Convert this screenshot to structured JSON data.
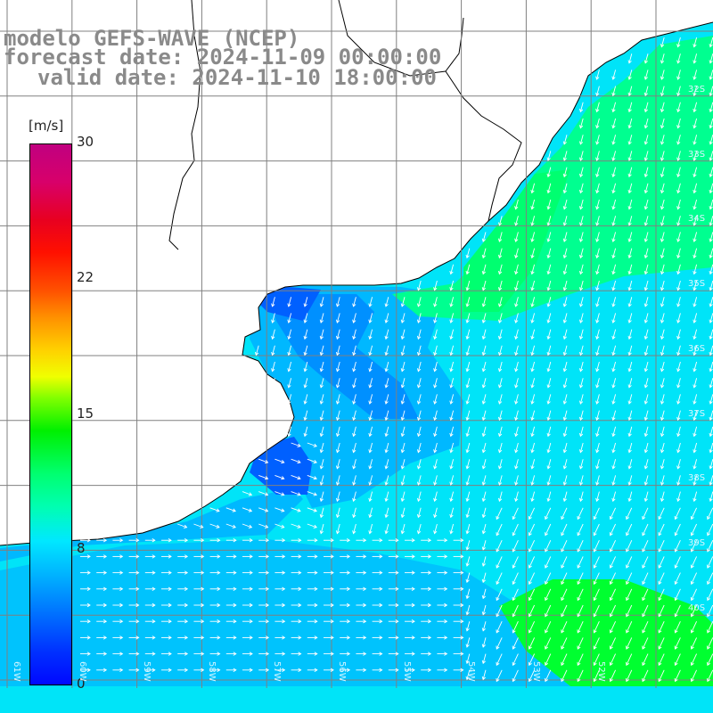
{
  "header": {
    "title": "modelo GEFS-WAVE (NCEP)",
    "forecast": "forecast date: 2024-11-09 00:00:00",
    "valid": "valid date: 2024-11-10 18:00:00"
  },
  "colorbar": {
    "units": "[m/s]",
    "ticks": [
      "30",
      "22",
      "15",
      "8",
      "0"
    ],
    "tick_values": [
      30,
      22,
      15,
      8,
      0
    ]
  },
  "grid": {
    "lat_labels": [
      "32S",
      "33S",
      "34S",
      "35S",
      "36S",
      "37S",
      "38S",
      "39S",
      "40S"
    ],
    "lon_labels": [
      "61W",
      "60W",
      "59W",
      "58W",
      "57W",
      "56W",
      "55W",
      "54W",
      "53W",
      "52W"
    ]
  },
  "colors": {
    "ocean_light": "#00e4f8",
    "ocean_mid": "#00b8ff",
    "ocean_deep": "#0060ff",
    "ocean_green": "#00ff90",
    "ocean_strong": "#00ff30",
    "land": "#ffffff",
    "coast": "#000000",
    "grid": "#808080",
    "arrow": "#ffffff",
    "title": "#8a8a8a"
  }
}
